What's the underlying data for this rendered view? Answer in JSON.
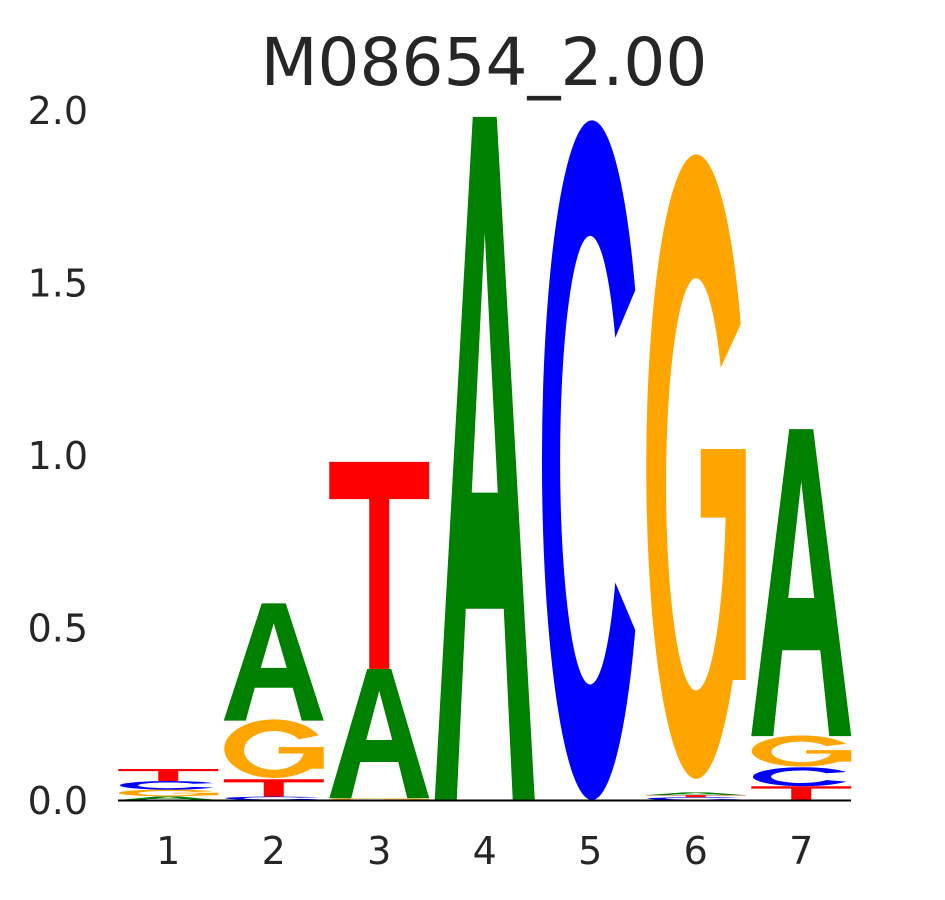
{
  "chart_data": {
    "type": "sequence-logo",
    "title": "M08654_2.00",
    "xlabel": "",
    "ylabel": "",
    "ylim": [
      0,
      2.0
    ],
    "yticks": [
      "0.0",
      "0.5",
      "1.0",
      "1.5",
      "2.0"
    ],
    "yticks_values": [
      0,
      0.5,
      1.0,
      1.5,
      2.0
    ],
    "categories": [
      "1",
      "2",
      "3",
      "4",
      "5",
      "6",
      "7"
    ],
    "colors": {
      "A": "#008000",
      "C": "#0000ff",
      "G": "#ffa500",
      "T": "#ff0000"
    },
    "positions": [
      {
        "stack": [
          {
            "letter": "A",
            "value": 0.01
          },
          {
            "letter": "G",
            "value": 0.02
          },
          {
            "letter": "C",
            "value": 0.025
          },
          {
            "letter": "T",
            "value": 0.035
          }
        ]
      },
      {
        "stack": [
          {
            "letter": "C",
            "value": 0.01
          },
          {
            "letter": "T",
            "value": 0.05
          },
          {
            "letter": "G",
            "value": 0.17
          },
          {
            "letter": "A",
            "value": 0.34
          }
        ]
      },
      {
        "stack": [
          {
            "letter": "G",
            "value": 0.005
          },
          {
            "letter": "A",
            "value": 0.375
          },
          {
            "letter": "T",
            "value": 0.6
          }
        ]
      },
      {
        "stack": [
          {
            "letter": "A",
            "value": 1.98
          }
        ]
      },
      {
        "stack": [
          {
            "letter": "C",
            "value": 1.97
          }
        ]
      },
      {
        "stack": [
          {
            "letter": "C",
            "value": 0.008
          },
          {
            "letter": "T",
            "value": 0.006
          },
          {
            "letter": "A",
            "value": 0.008
          },
          {
            "letter": "G",
            "value": 1.81
          }
        ]
      },
      {
        "stack": [
          {
            "letter": "T",
            "value": 0.04
          },
          {
            "letter": "C",
            "value": 0.055
          },
          {
            "letter": "G",
            "value": 0.09
          },
          {
            "letter": "A",
            "value": 0.89
          }
        ]
      }
    ]
  }
}
